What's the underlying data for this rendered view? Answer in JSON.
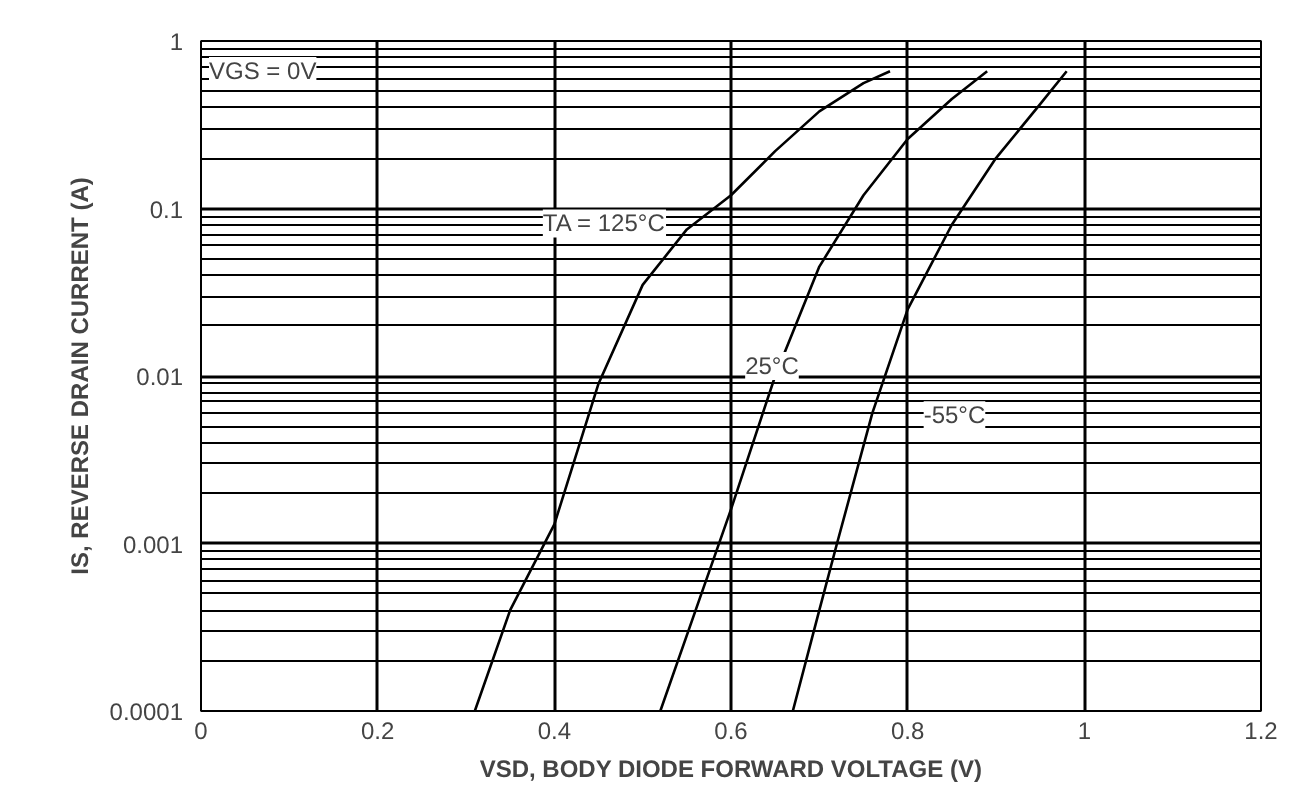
{
  "chart_data": {
    "type": "line",
    "xlabel": "VSD, BODY DIODE FORWARD VOLTAGE (V)",
    "ylabel": "IS, REVERSE DRAIN CURRENT (A)",
    "log": "y",
    "grid": true,
    "marker": "none",
    "line_style": "solid",
    "xlim": [
      0,
      1.2
    ],
    "xticks": [
      0,
      0.2,
      0.4,
      0.6,
      0.8,
      1,
      1.2
    ],
    "ylim": [
      0.0001,
      1
    ],
    "yticks": [
      {
        "value": 0.0001,
        "label": "0.0001"
      },
      {
        "value": 0.001,
        "label": "0.001"
      },
      {
        "value": 0.01,
        "label": "0.01"
      },
      {
        "value": 0.1,
        "label": "0.1"
      },
      {
        "value": 1,
        "label": "1"
      }
    ],
    "series": [
      {
        "name": "TA = 125°C",
        "color": "#000000",
        "x": [
          0.31,
          0.35,
          0.4,
          0.45,
          0.5,
          0.55,
          0.6,
          0.65,
          0.7,
          0.75,
          0.78
        ],
        "values": [
          0.0001,
          0.0004,
          0.0013,
          0.009,
          0.035,
          0.075,
          0.12,
          0.22,
          0.38,
          0.56,
          0.66
        ]
      },
      {
        "name": "25°C",
        "color": "#000000",
        "x": [
          0.52,
          0.56,
          0.6,
          0.65,
          0.7,
          0.75,
          0.8,
          0.85,
          0.89
        ],
        "values": [
          0.0001,
          0.0004,
          0.0016,
          0.01,
          0.045,
          0.12,
          0.26,
          0.45,
          0.66
        ]
      },
      {
        "name": "-55°C",
        "color": "#000000",
        "x": [
          0.67,
          0.7,
          0.72,
          0.76,
          0.8,
          0.85,
          0.9,
          0.95,
          0.98
        ],
        "values": [
          0.0001,
          0.0004,
          0.001,
          0.006,
          0.025,
          0.08,
          0.2,
          0.42,
          0.66
        ]
      }
    ],
    "annotations": [
      "VGS = 0V"
    ]
  }
}
